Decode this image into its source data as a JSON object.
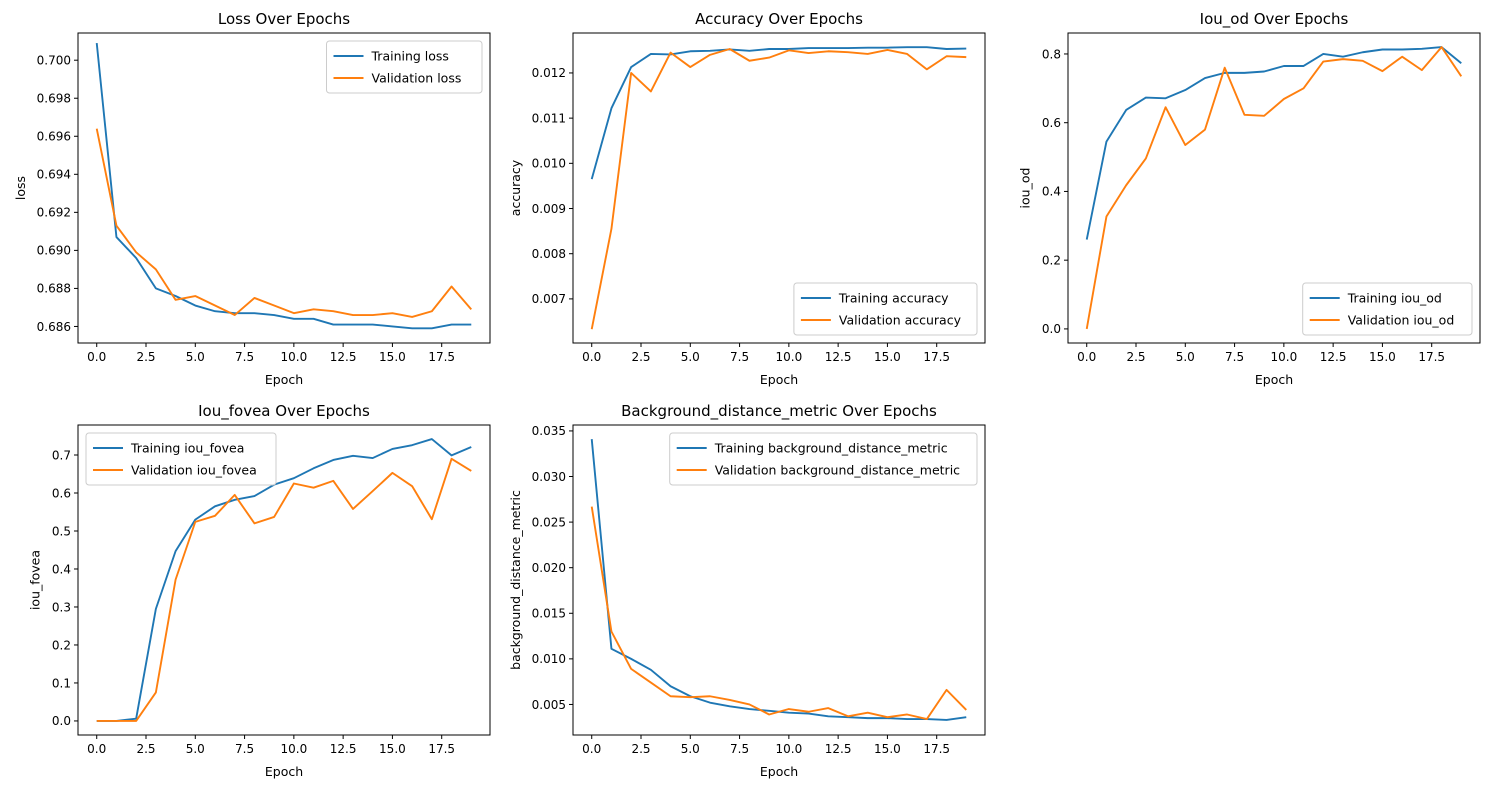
{
  "chart_data": [
    {
      "type": "line",
      "title": "Loss Over Epochs",
      "xlabel": "Epoch",
      "ylabel": "loss",
      "xlim": [
        -0.95,
        19.95
      ],
      "ylim": [
        0.68513,
        0.70143
      ],
      "xticks": [
        0,
        2.5,
        5,
        7.5,
        10,
        12.5,
        15,
        17.5
      ],
      "xtick_labels": [
        "0.0",
        "2.5",
        "5.0",
        "7.5",
        "10.0",
        "12.5",
        "15.0",
        "17.5"
      ],
      "yticks": [
        0.686,
        0.688,
        0.69,
        0.692,
        0.694,
        0.696,
        0.698,
        0.7
      ],
      "ytick_labels": [
        "0.686",
        "0.688",
        "0.690",
        "0.692",
        "0.694",
        "0.696",
        "0.698",
        "0.700"
      ],
      "legend": "upper-right",
      "x": [
        0,
        1,
        2,
        3,
        4,
        5,
        6,
        7,
        8,
        9,
        10,
        11,
        12,
        13,
        14,
        15,
        16,
        17,
        18,
        19
      ],
      "series": [
        {
          "name": "Training loss",
          "color": "#1f77b4",
          "values": [
            0.7009,
            0.6907,
            0.6896,
            0.688,
            0.6876,
            0.6871,
            0.6868,
            0.6867,
            0.6867,
            0.6866,
            0.6864,
            0.6864,
            0.6861,
            0.6861,
            0.6861,
            0.686,
            0.6859,
            0.6859,
            0.6861,
            0.6861
          ]
        },
        {
          "name": "Validation loss",
          "color": "#ff7f0e",
          "values": [
            0.6964,
            0.6913,
            0.6899,
            0.689,
            0.6874,
            0.6876,
            0.6871,
            0.6866,
            0.6875,
            0.6871,
            0.6867,
            0.6869,
            0.6868,
            0.6866,
            0.6866,
            0.6867,
            0.6865,
            0.6868,
            0.6881,
            0.6869
          ]
        }
      ]
    },
    {
      "type": "line",
      "title": "Accuracy Over Epochs",
      "xlabel": "Epoch",
      "ylabel": "accuracy",
      "xlim": [
        -0.95,
        19.95
      ],
      "ylim": [
        0.006024,
        0.012884
      ],
      "xticks": [
        0,
        2.5,
        5,
        7.5,
        10,
        12.5,
        15,
        17.5
      ],
      "xtick_labels": [
        "0.0",
        "2.5",
        "5.0",
        "7.5",
        "10.0",
        "12.5",
        "15.0",
        "17.5"
      ],
      "yticks": [
        0.007,
        0.008,
        0.009,
        0.01,
        0.011,
        0.012
      ],
      "ytick_labels": [
        "0.007",
        "0.008",
        "0.009",
        "0.010",
        "0.011",
        "0.012"
      ],
      "legend": "lower-right",
      "x": [
        0,
        1,
        2,
        3,
        4,
        5,
        6,
        7,
        8,
        9,
        10,
        11,
        12,
        13,
        14,
        15,
        16,
        17,
        18,
        19
      ],
      "series": [
        {
          "name": "Training accuracy",
          "color": "#1f77b4",
          "values": [
            0.00965,
            0.01122,
            0.01213,
            0.01242,
            0.01241,
            0.01248,
            0.01249,
            0.01252,
            0.01249,
            0.01253,
            0.01253,
            0.01255,
            0.01255,
            0.01255,
            0.01256,
            0.01256,
            0.01257,
            0.01257,
            0.01253,
            0.01254
          ]
        },
        {
          "name": "Validation accuracy",
          "color": "#ff7f0e",
          "values": [
            0.00633,
            0.00855,
            0.012,
            0.01159,
            0.01245,
            0.01213,
            0.0124,
            0.01253,
            0.01227,
            0.01234,
            0.0125,
            0.01244,
            0.01248,
            0.01246,
            0.01242,
            0.01251,
            0.01242,
            0.01208,
            0.01237,
            0.01235
          ]
        }
      ]
    },
    {
      "type": "line",
      "title": "Iou_od Over Epochs",
      "xlabel": "Epoch",
      "ylabel": "iou_od",
      "xlim": [
        -0.95,
        19.95
      ],
      "ylim": [
        -0.041,
        0.861
      ],
      "xticks": [
        0,
        2.5,
        5,
        7.5,
        10,
        12.5,
        15,
        17.5
      ],
      "xtick_labels": [
        "0.0",
        "2.5",
        "5.0",
        "7.5",
        "10.0",
        "12.5",
        "15.0",
        "17.5"
      ],
      "yticks": [
        0.0,
        0.2,
        0.4,
        0.6,
        0.8
      ],
      "ytick_labels": [
        "0.0",
        "0.2",
        "0.4",
        "0.6",
        "0.8"
      ],
      "legend": "lower-right",
      "x": [
        0,
        1,
        2,
        3,
        4,
        5,
        6,
        7,
        8,
        9,
        10,
        11,
        12,
        13,
        14,
        15,
        16,
        17,
        18,
        19
      ],
      "series": [
        {
          "name": "Training iou_od",
          "color": "#1f77b4",
          "values": [
            0.26,
            0.545,
            0.637,
            0.673,
            0.671,
            0.695,
            0.73,
            0.745,
            0.745,
            0.749,
            0.765,
            0.765,
            0.8,
            0.792,
            0.805,
            0.813,
            0.813,
            0.815,
            0.82,
            0.773
          ]
        },
        {
          "name": "Validation iou_od",
          "color": "#ff7f0e",
          "values": [
            0.0,
            0.327,
            0.418,
            0.496,
            0.645,
            0.535,
            0.58,
            0.76,
            0.623,
            0.62,
            0.669,
            0.7,
            0.778,
            0.785,
            0.78,
            0.75,
            0.792,
            0.753,
            0.82,
            0.735
          ]
        }
      ]
    },
    {
      "type": "line",
      "title": "Iou_fovea Over Epochs",
      "xlabel": "Epoch",
      "ylabel": "iou_fovea",
      "xlim": [
        -0.95,
        19.95
      ],
      "ylim": [
        -0.037,
        0.779
      ],
      "xticks": [
        0,
        2.5,
        5,
        7.5,
        10,
        12.5,
        15,
        17.5
      ],
      "xtick_labels": [
        "0.0",
        "2.5",
        "5.0",
        "7.5",
        "10.0",
        "12.5",
        "15.0",
        "17.5"
      ],
      "yticks": [
        0.0,
        0.1,
        0.2,
        0.3,
        0.4,
        0.5,
        0.6,
        0.7
      ],
      "ytick_labels": [
        "0.0",
        "0.1",
        "0.2",
        "0.3",
        "0.4",
        "0.5",
        "0.6",
        "0.7"
      ],
      "legend": "upper-left",
      "x": [
        0,
        1,
        2,
        3,
        4,
        5,
        6,
        7,
        8,
        9,
        10,
        11,
        12,
        13,
        14,
        15,
        16,
        17,
        18,
        19
      ],
      "series": [
        {
          "name": "Training iou_fovea",
          "color": "#1f77b4",
          "values": [
            0.0,
            0.0,
            0.006,
            0.295,
            0.447,
            0.53,
            0.565,
            0.582,
            0.592,
            0.622,
            0.639,
            0.665,
            0.687,
            0.698,
            0.692,
            0.716,
            0.726,
            0.742,
            0.699,
            0.721
          ]
        },
        {
          "name": "Validation iou_fovea",
          "color": "#ff7f0e",
          "values": [
            0.0,
            0.0,
            0.0,
            0.075,
            0.372,
            0.524,
            0.54,
            0.595,
            0.52,
            0.537,
            0.625,
            0.614,
            0.632,
            0.558,
            0.605,
            0.653,
            0.618,
            0.531,
            0.69,
            0.658
          ]
        }
      ]
    },
    {
      "type": "line",
      "title": "Background_distance_metric Over Epochs",
      "xlabel": "Epoch",
      "ylabel": "background_distance_metric",
      "xlim": [
        -0.95,
        19.95
      ],
      "ylim": [
        0.00165,
        0.03565
      ],
      "xticks": [
        0,
        2.5,
        5,
        7.5,
        10,
        12.5,
        15,
        17.5
      ],
      "xtick_labels": [
        "0.0",
        "2.5",
        "5.0",
        "7.5",
        "10.0",
        "12.5",
        "15.0",
        "17.5"
      ],
      "yticks": [
        0.005,
        0.01,
        0.015,
        0.02,
        0.025,
        0.03,
        0.035
      ],
      "ytick_labels": [
        "0.005",
        "0.010",
        "0.015",
        "0.020",
        "0.025",
        "0.030",
        "0.035"
      ],
      "legend": "upper-right",
      "x": [
        0,
        1,
        2,
        3,
        4,
        5,
        6,
        7,
        8,
        9,
        10,
        11,
        12,
        13,
        14,
        15,
        16,
        17,
        18,
        19
      ],
      "series": [
        {
          "name": "Training background_distance_metric",
          "color": "#1f77b4",
          "values": [
            0.0341,
            0.0111,
            0.01,
            0.0088,
            0.007,
            0.0059,
            0.0052,
            0.0048,
            0.0045,
            0.0043,
            0.0041,
            0.004,
            0.0037,
            0.0036,
            0.0035,
            0.0035,
            0.0034,
            0.0034,
            0.0033,
            0.0036
          ]
        },
        {
          "name": "Validation background_distance_metric",
          "color": "#ff7f0e",
          "values": [
            0.0267,
            0.013,
            0.0089,
            0.0074,
            0.0059,
            0.0058,
            0.0059,
            0.0055,
            0.005,
            0.0039,
            0.0045,
            0.0042,
            0.0046,
            0.0037,
            0.0041,
            0.0036,
            0.0039,
            0.0034,
            0.0066,
            0.0044
          ]
        }
      ]
    }
  ]
}
